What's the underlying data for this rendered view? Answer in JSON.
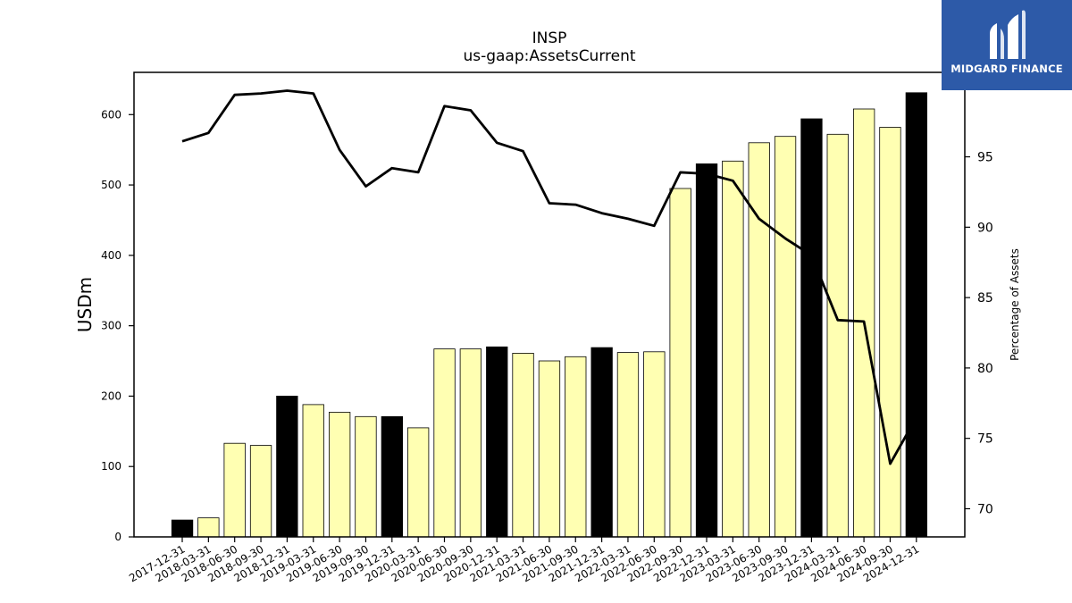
{
  "brand": {
    "name": "MIDGARD FINANCE",
    "color": "#2d5aa8"
  },
  "chart_data": {
    "type": "bar",
    "title": "INSP",
    "subtitle": "us-gaap:AssetsCurrent",
    "ylabel": "USDm",
    "y2label": "Percentage of Assets",
    "ylim": [
      0,
      660
    ],
    "y2lim": [
      68,
      101
    ],
    "yticks": [
      0,
      100,
      200,
      300,
      400,
      500,
      600
    ],
    "y2ticks": [
      70,
      75,
      80,
      85,
      90,
      95
    ],
    "colors": {
      "q4_bar": "#000000",
      "other_bar": "#ffffb2",
      "line": "#000000"
    },
    "categories": [
      "2017-12-31",
      "2018-03-31",
      "2018-06-30",
      "2018-09-30",
      "2018-12-31",
      "2019-03-31",
      "2019-06-30",
      "2019-09-30",
      "2019-12-31",
      "2020-03-31",
      "2020-06-30",
      "2020-09-30",
      "2020-12-31",
      "2021-03-31",
      "2021-06-30",
      "2021-09-30",
      "2021-12-31",
      "2022-03-31",
      "2022-06-30",
      "2022-09-30",
      "2022-12-31",
      "2023-03-31",
      "2023-06-30",
      "2023-09-30",
      "2023-12-31",
      "2024-03-31",
      "2024-06-30",
      "2024-09-30",
      "2024-12-31"
    ],
    "series": [
      {
        "type": "bar",
        "values": [
          24,
          27,
          133,
          130,
          200,
          188,
          177,
          171,
          171,
          155,
          267,
          267,
          270,
          261,
          250,
          256,
          269,
          262,
          263,
          495,
          530,
          534,
          560,
          569,
          594,
          572,
          608,
          582,
          631
        ]
      },
      {
        "type": "line",
        "axis": "right",
        "values": [
          96.1,
          96.7,
          99.4,
          99.5,
          99.7,
          99.5,
          95.5,
          92.9,
          94.2,
          93.9,
          98.6,
          98.3,
          96.0,
          95.4,
          91.7,
          91.6,
          91.0,
          90.6,
          90.1,
          93.9,
          93.8,
          93.3,
          90.6,
          89.2,
          88.0,
          83.4,
          83.3,
          73.2,
          76.5
        ]
      }
    ]
  }
}
